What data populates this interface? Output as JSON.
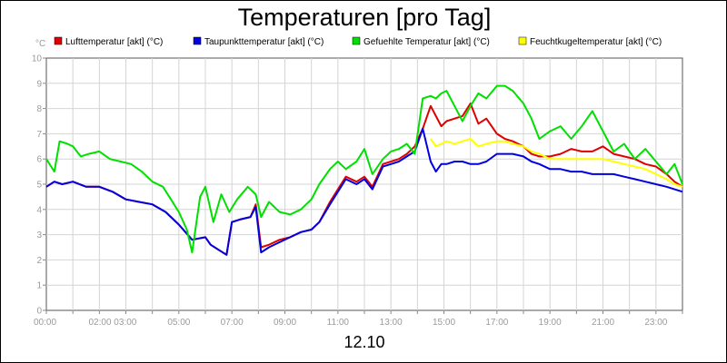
{
  "chart_data": {
    "type": "line",
    "title": "Temperaturen [pro Tag]",
    "xlabel": "12.10",
    "ylabel": "°C",
    "ylim": [
      0,
      10
    ],
    "xlim": [
      0,
      24
    ],
    "yticks": [
      0,
      1,
      2,
      3,
      4,
      5,
      6,
      7,
      8,
      9,
      10
    ],
    "xticks": [
      {
        "x": 0,
        "label": "00:00"
      },
      {
        "x": 2.5,
        "label": "02:00 03:00"
      },
      {
        "x": 5,
        "label": "05:00"
      },
      {
        "x": 7,
        "label": "07:00"
      },
      {
        "x": 9,
        "label": "09:00"
      },
      {
        "x": 11,
        "label": "11:00"
      },
      {
        "x": 13,
        "label": "13:00"
      },
      {
        "x": 15,
        "label": "15:00"
      },
      {
        "x": 17,
        "label": "17:00"
      },
      {
        "x": 19,
        "label": "19:00"
      },
      {
        "x": 21,
        "label": "21:00"
      },
      {
        "x": 23,
        "label": "23:00"
      }
    ],
    "grid": true,
    "legend_position": "top",
    "series": [
      {
        "name": "Lufttemperatur [akt] (°C)",
        "color": "#e00000",
        "x": [
          0,
          0.3,
          0.6,
          1,
          1.5,
          2,
          2.5,
          3,
          3.5,
          4,
          4.5,
          5,
          5.5,
          6,
          6.2,
          6.5,
          6.8,
          7,
          7.3,
          7.7,
          7.9,
          8.1,
          8.4,
          8.8,
          9.2,
          9.6,
          10,
          10.3,
          10.7,
          11,
          11.3,
          11.7,
          12,
          12.3,
          12.7,
          13,
          13.3,
          13.6,
          13.9,
          14.2,
          14.5,
          14.7,
          14.9,
          15.1,
          15.4,
          15.7,
          16,
          16.3,
          16.6,
          17,
          17.3,
          17.6,
          18,
          18.3,
          18.6,
          19,
          19.4,
          19.8,
          20.2,
          20.6,
          21,
          21.4,
          21.8,
          22.2,
          22.6,
          23,
          23.4,
          23.7,
          24
        ],
        "values": [
          4.9,
          5.1,
          5.0,
          5.1,
          4.9,
          4.9,
          4.7,
          4.4,
          4.3,
          4.2,
          3.9,
          3.4,
          2.8,
          2.9,
          2.6,
          2.4,
          2.2,
          3.5,
          3.6,
          3.7,
          4.2,
          2.5,
          2.6,
          2.8,
          2.9,
          3.1,
          3.2,
          3.5,
          4.3,
          4.8,
          5.3,
          5.1,
          5.3,
          4.9,
          5.8,
          5.9,
          6.0,
          6.2,
          6.5,
          7.2,
          8.1,
          7.7,
          7.3,
          7.5,
          7.6,
          7.7,
          8.2,
          7.4,
          7.6,
          7.0,
          6.8,
          6.7,
          6.5,
          6.2,
          6.1,
          6.1,
          6.2,
          6.4,
          6.3,
          6.3,
          6.5,
          6.2,
          6.1,
          6.0,
          5.8,
          5.7,
          5.4,
          5.1,
          4.9
        ]
      },
      {
        "name": "Taupunkttemperatur [akt] (°C)",
        "color": "#0000e0",
        "x": [
          0,
          0.3,
          0.6,
          1,
          1.5,
          2,
          2.5,
          3,
          3.5,
          4,
          4.5,
          5,
          5.5,
          6,
          6.2,
          6.5,
          6.8,
          7,
          7.3,
          7.7,
          7.9,
          8.1,
          8.4,
          8.8,
          9.2,
          9.6,
          10,
          10.3,
          10.7,
          11,
          11.3,
          11.7,
          12,
          12.3,
          12.7,
          13,
          13.3,
          13.6,
          13.9,
          14.2,
          14.5,
          14.7,
          14.9,
          15.1,
          15.4,
          15.7,
          16,
          16.3,
          16.6,
          17,
          17.3,
          17.6,
          18,
          18.3,
          18.6,
          19,
          19.4,
          19.8,
          20.2,
          20.6,
          21,
          21.4,
          21.8,
          22.2,
          22.6,
          23,
          23.4,
          23.7,
          24
        ],
        "values": [
          4.9,
          5.1,
          5.0,
          5.1,
          4.9,
          4.9,
          4.7,
          4.4,
          4.3,
          4.2,
          3.9,
          3.4,
          2.8,
          2.9,
          2.6,
          2.4,
          2.2,
          3.5,
          3.6,
          3.7,
          4.1,
          2.3,
          2.5,
          2.7,
          2.9,
          3.1,
          3.2,
          3.5,
          4.2,
          4.7,
          5.2,
          5.0,
          5.2,
          4.8,
          5.7,
          5.8,
          5.9,
          6.1,
          6.3,
          7.2,
          5.9,
          5.5,
          5.8,
          5.8,
          5.9,
          5.9,
          5.8,
          5.8,
          5.9,
          6.2,
          6.2,
          6.2,
          6.1,
          5.9,
          5.8,
          5.6,
          5.6,
          5.5,
          5.5,
          5.4,
          5.4,
          5.4,
          5.3,
          5.2,
          5.1,
          5.0,
          4.9,
          4.8,
          4.7
        ]
      },
      {
        "name": "Gefuehlte Temperatur [akt] (°C)",
        "color": "#00e000",
        "x": [
          0,
          0.3,
          0.5,
          0.8,
          1,
          1.3,
          1.6,
          2,
          2.4,
          2.8,
          3.2,
          3.6,
          4,
          4.4,
          4.7,
          5,
          5.3,
          5.5,
          5.8,
          6,
          6.3,
          6.6,
          6.9,
          7.2,
          7.6,
          7.9,
          8.1,
          8.4,
          8.8,
          9.2,
          9.6,
          10,
          10.3,
          10.7,
          11,
          11.3,
          11.7,
          12,
          12.3,
          12.7,
          13,
          13.3,
          13.6,
          13.9,
          14.2,
          14.5,
          14.7,
          14.9,
          15.1,
          15.4,
          15.7,
          16,
          16.3,
          16.6,
          17,
          17.3,
          17.6,
          18,
          18.3,
          18.6,
          19,
          19.4,
          19.8,
          20.2,
          20.6,
          21,
          21.4,
          21.8,
          22.2,
          22.6,
          23,
          23.4,
          23.7,
          24
        ],
        "values": [
          6.0,
          5.5,
          6.7,
          6.6,
          6.5,
          6.1,
          6.2,
          6.3,
          6.0,
          5.9,
          5.8,
          5.5,
          5.1,
          4.9,
          4.4,
          3.9,
          3.2,
          2.3,
          4.5,
          4.9,
          3.5,
          4.6,
          3.9,
          4.4,
          4.9,
          4.6,
          3.7,
          4.3,
          3.9,
          3.8,
          4.0,
          4.4,
          5.0,
          5.6,
          5.9,
          5.6,
          5.9,
          6.4,
          5.4,
          6.0,
          6.3,
          6.4,
          6.6,
          6.2,
          8.4,
          8.5,
          8.4,
          8.6,
          8.7,
          8.1,
          7.5,
          8.1,
          8.6,
          8.4,
          8.9,
          8.9,
          8.7,
          8.2,
          7.6,
          6.8,
          7.1,
          7.3,
          6.8,
          7.3,
          7.9,
          7.1,
          6.3,
          6.6,
          6.0,
          6.4,
          5.9,
          5.4,
          5.8,
          5.0
        ]
      },
      {
        "name": "Feuchtkugeltemperatur [akt] (°C)",
        "color": "#ffff00",
        "x": [
          14.5,
          14.7,
          14.9,
          15.1,
          15.4,
          15.7,
          16,
          16.3,
          16.6,
          17,
          17.3,
          17.6,
          18,
          18.3,
          18.6,
          19,
          19.4,
          19.8,
          20.2,
          20.6,
          21,
          21.4,
          21.8,
          22.2,
          22.6,
          23,
          23.4,
          23.7,
          24
        ],
        "values": [
          6.8,
          6.5,
          6.6,
          6.7,
          6.6,
          6.7,
          6.8,
          6.5,
          6.6,
          6.7,
          6.7,
          6.6,
          6.5,
          6.3,
          6.2,
          6.0,
          6.0,
          6.0,
          6.0,
          6.0,
          6.0,
          5.9,
          5.8,
          5.7,
          5.6,
          5.4,
          5.2,
          5.0,
          4.9
        ]
      }
    ]
  }
}
